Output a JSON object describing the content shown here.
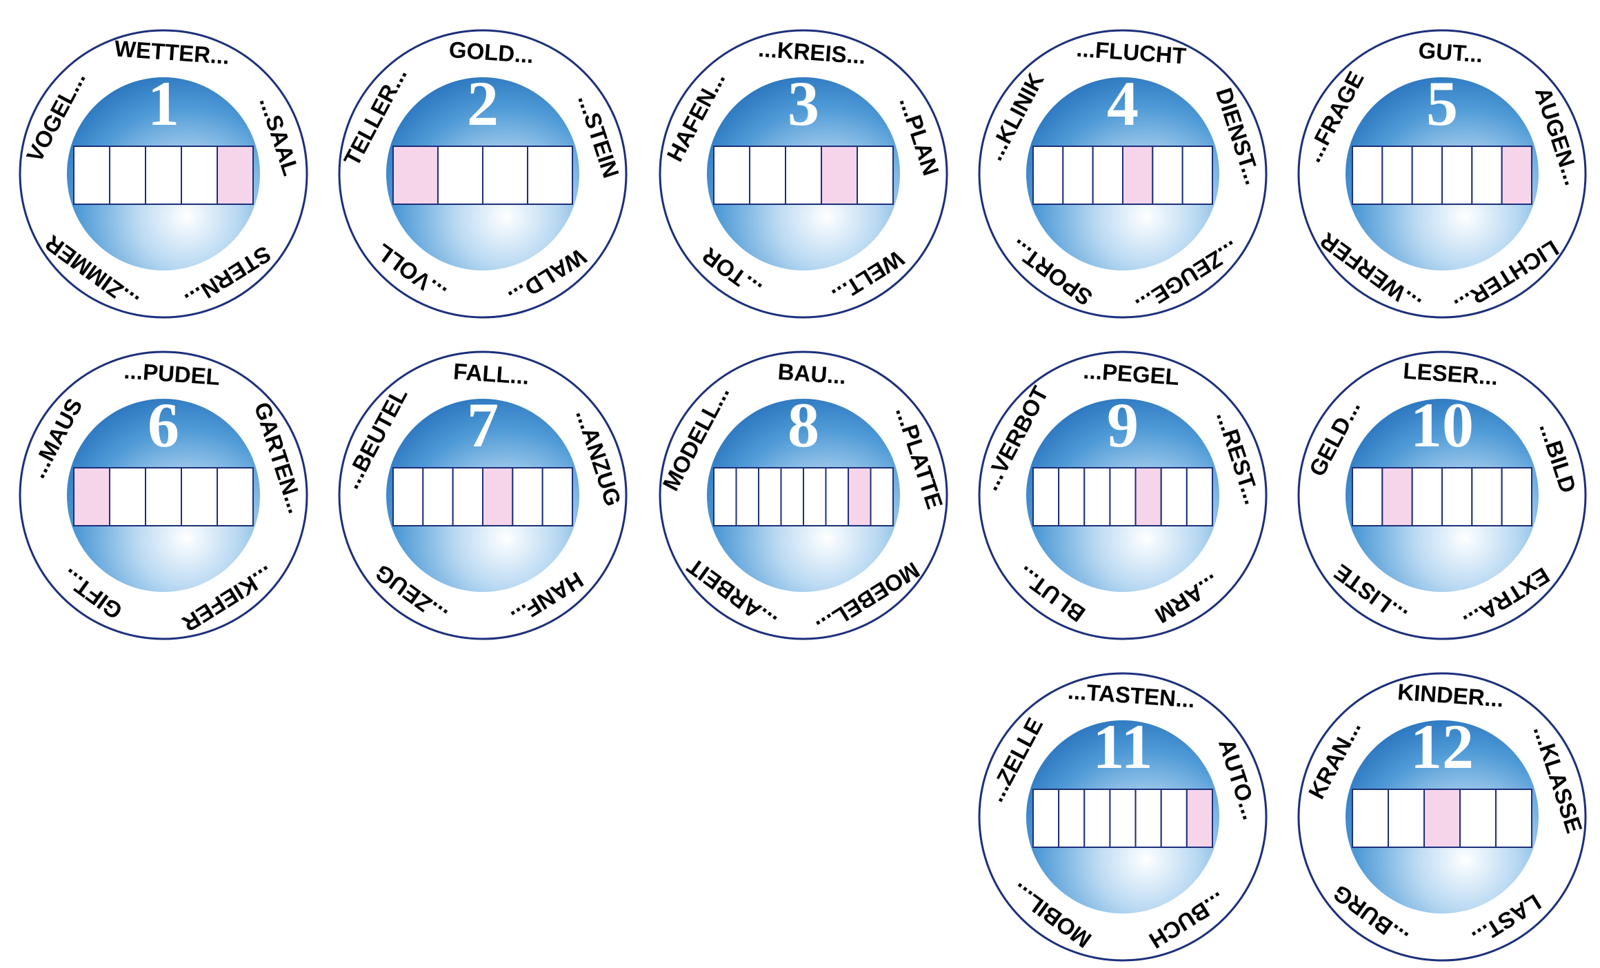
{
  "puzzles": [
    {
      "number": "1",
      "words": [
        "VOGEL...",
        "WETTER...",
        "...SAAL",
        "STERN...",
        "...ZIMMER"
      ],
      "cells": 5,
      "marked": 5
    },
    {
      "number": "2",
      "words": [
        "TELLER...",
        "GOLD...",
        "...STEIN",
        "WALD...",
        "...VOLL"
      ],
      "cells": 4,
      "marked": 1
    },
    {
      "number": "3",
      "words": [
        "HAFEN...",
        "...KREIS...",
        "...PLAN",
        "WELT...",
        "...TOR"
      ],
      "cells": 5,
      "marked": 4
    },
    {
      "number": "4",
      "words": [
        "...KLINIK",
        "...FLUCHT",
        "DIENST...",
        "...ZEUGE...",
        "SPORT..."
      ],
      "cells": 6,
      "marked": 4
    },
    {
      "number": "5",
      "words": [
        "...FRAGE",
        "GUT...",
        "AUGEN...",
        "LICHTER...",
        "...WERFER"
      ],
      "cells": 6,
      "marked": 6
    },
    {
      "number": "6",
      "words": [
        "...MAUS",
        "...PUDEL",
        "GARTEN...",
        "...KIEFER",
        "GIFT..."
      ],
      "cells": 5,
      "marked": 1
    },
    {
      "number": "7",
      "words": [
        "...BEUTEL",
        "FALL...",
        "...ANZUG",
        "HANF...",
        "...ZEUG"
      ],
      "cells": 6,
      "marked": 4
    },
    {
      "number": "8",
      "words": [
        "MODELL...",
        "BAU...",
        "...PLATTE",
        "MOEBEL...",
        "...ARBEIT"
      ],
      "cells": 8,
      "marked": 7
    },
    {
      "number": "9",
      "words": [
        "...VERBOT",
        "...PEGEL",
        "...REST...",
        "...ARM",
        "BLUT..."
      ],
      "cells": 7,
      "marked": 5
    },
    {
      "number": "10",
      "words": [
        "GELD...",
        "LESER...",
        "...BILD",
        "EXTRA...",
        "...LISTE"
      ],
      "cells": 6,
      "marked": 2
    },
    {
      "number": "11",
      "words": [
        "...ZELLE",
        "...TASTEN...",
        "AUTO...",
        "...BUCH",
        "MOBIL..."
      ],
      "cells": 7,
      "marked": 7
    },
    {
      "number": "12",
      "words": [
        "KRAN...",
        "KINDER...",
        "...KLASSE",
        "LAST...",
        "...BURG"
      ],
      "cells": 5,
      "marked": 3
    }
  ]
}
